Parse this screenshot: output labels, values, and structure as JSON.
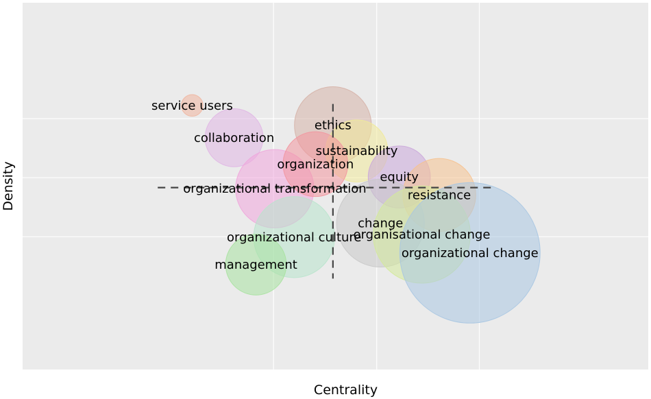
{
  "chart_data": {
    "type": "scatter",
    "xlabel": "Centrality",
    "ylabel": "Density",
    "grid": true,
    "xlim": [
      0,
      100
    ],
    "ylim": [
      0,
      100
    ],
    "x_gridlines": [
      40.1,
      56.6,
      73.0
    ],
    "y_gridlines": [
      36.2,
      52.3,
      68.4
    ],
    "reference_lines": {
      "vertical_x": 49.6,
      "horizontal_y": 49.6
    },
    "points": [
      {
        "label": "service users",
        "x": 27.1,
        "y": 72.0,
        "size": 16,
        "color": "#f0b59e"
      },
      {
        "label": "collaboration",
        "x": 33.8,
        "y": 63.2,
        "size": 43,
        "color": "#e0b6e4"
      },
      {
        "label": "organizational transformation",
        "x": 40.3,
        "y": 49.3,
        "size": 58,
        "color": "#f0a6dc"
      },
      {
        "label": "ethics",
        "x": 49.6,
        "y": 66.6,
        "size": 57,
        "color": "#d6b2a8"
      },
      {
        "label": "sustainability",
        "x": 53.4,
        "y": 59.6,
        "size": 46,
        "color": "#f0ea9a"
      },
      {
        "label": "organization",
        "x": 46.8,
        "y": 56.0,
        "size": 48,
        "color": "#f3959e"
      },
      {
        "label": "equity",
        "x": 60.2,
        "y": 52.5,
        "size": 46,
        "color": "#cba8da"
      },
      {
        "label": "resistance",
        "x": 66.6,
        "y": 47.6,
        "size": 54,
        "color": "#f6c28f"
      },
      {
        "label": "change",
        "x": 57.2,
        "y": 39.9,
        "size": 65,
        "color": "#c8c8c8"
      },
      {
        "label": "organisational change",
        "x": 63.8,
        "y": 36.8,
        "size": 72,
        "color": "#d4ea9a"
      },
      {
        "label": "organizational culture",
        "x": 43.4,
        "y": 36.1,
        "size": 60,
        "color": "#b8e4cc"
      },
      {
        "label": "management",
        "x": 37.3,
        "y": 28.6,
        "size": 45,
        "color": "#a8e2a0"
      },
      {
        "label": "organizational change",
        "x": 71.5,
        "y": 31.8,
        "size": 104,
        "color": "#a9c7e2"
      }
    ]
  }
}
